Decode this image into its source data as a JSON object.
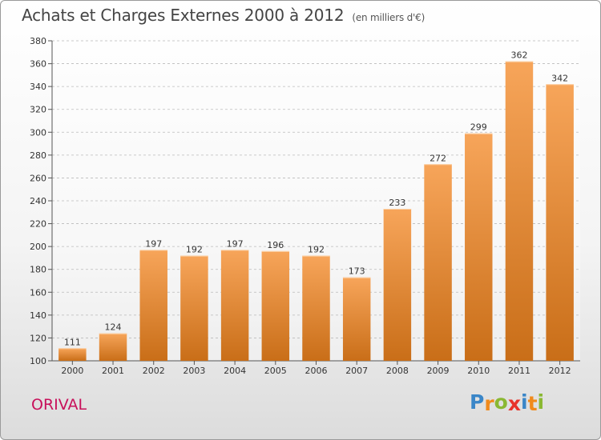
{
  "header": {
    "title": "Achats et Charges Externes 2000 à 2012",
    "subtitle": "(en milliers d'€)"
  },
  "commune": "ORIVAL",
  "brand": {
    "letters": [
      "P",
      "r",
      "o",
      "x",
      "i",
      "t",
      "i"
    ],
    "colors": [
      "#3a86c8",
      "#f08a1c",
      "#8ab832",
      "#e8332a",
      "#3a86c8",
      "#f08a1c",
      "#8ab832"
    ]
  },
  "colors": {
    "bar_top": "#f7a55a",
    "bar_bottom": "#c96e18",
    "axis": "#555555",
    "grid": "#bbbbbb"
  },
  "chart_data": {
    "type": "bar",
    "categories": [
      "2000",
      "2001",
      "2002",
      "2003",
      "2004",
      "2005",
      "2006",
      "2007",
      "2008",
      "2009",
      "2010",
      "2011",
      "2012"
    ],
    "values": [
      111,
      124,
      197,
      192,
      197,
      196,
      192,
      173,
      233,
      272,
      299,
      362,
      342
    ],
    "ylim": [
      100,
      380
    ],
    "yticks": [
      100,
      120,
      140,
      160,
      180,
      200,
      220,
      240,
      260,
      280,
      300,
      320,
      340,
      360,
      380
    ],
    "xlabel": "",
    "ylabel": "",
    "grid": "horizontal dashed"
  }
}
